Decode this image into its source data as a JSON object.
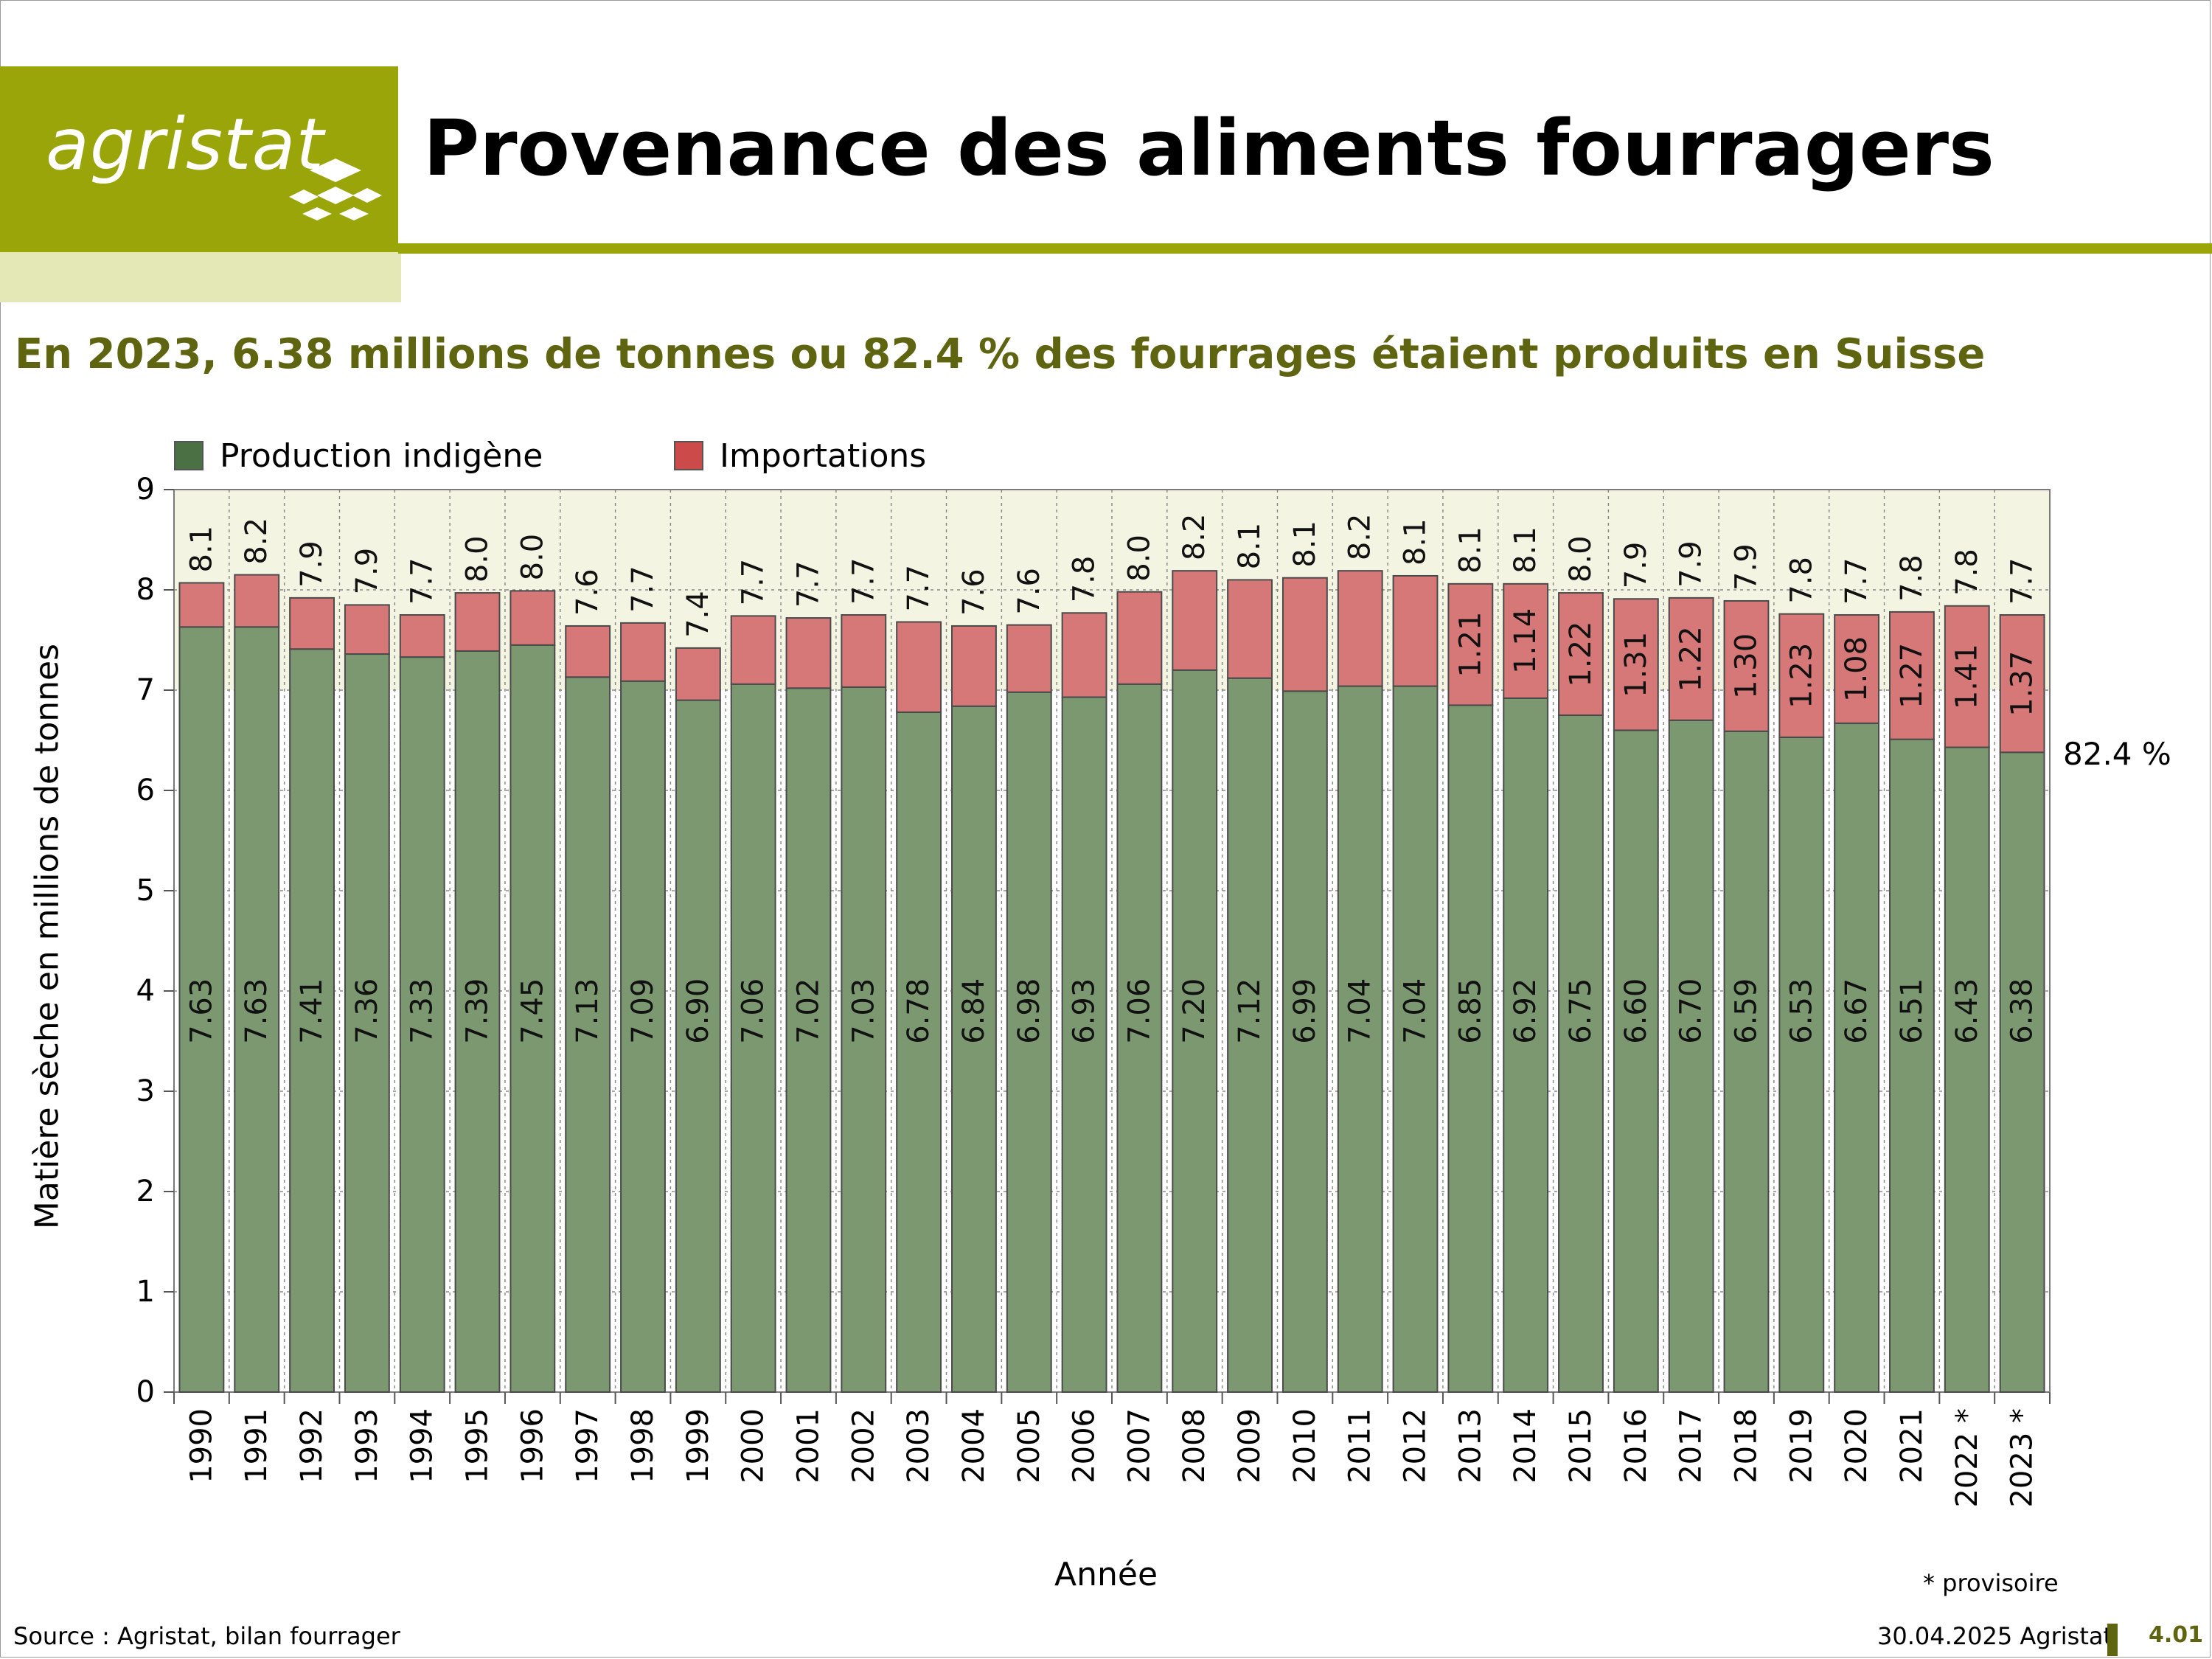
{
  "brand": {
    "logo_text": "agristat"
  },
  "header": {
    "title": "Provenance des aliments fourragers",
    "subtitle": "En 2023, 6.38 millions de tonnes ou 82.4 % des fourrages étaient produits en Suisse"
  },
  "colors": {
    "brand": "#9aa50a",
    "brand_light": "#e4e8b6",
    "subtitle": "#5f6410",
    "production": "#7b9871",
    "importations": "#d67878",
    "plot_bg_upper": "#f3f4e2"
  },
  "chart_data": {
    "type": "bar",
    "stacked": true,
    "xlabel": "Année",
    "ylabel": "Matière sèche en millions de tonnes",
    "ylim": [
      0,
      9
    ],
    "yticks": [
      "0",
      "1",
      "2",
      "3",
      "4",
      "5",
      "6",
      "7",
      "8",
      "9"
    ],
    "legend_position": "top-left",
    "grid": "dotted",
    "categories": [
      "1990",
      "1991",
      "1992",
      "1993",
      "1994",
      "1995",
      "1996",
      "1997",
      "1998",
      "1999",
      "2000",
      "2001",
      "2002",
      "2003",
      "2004",
      "2005",
      "2006",
      "2007",
      "2008",
      "2009",
      "2010",
      "2011",
      "2012",
      "2013",
      "2014",
      "2015",
      "2016",
      "2017",
      "2018",
      "2019",
      "2020",
      "2021",
      "2022 *",
      "2023 *"
    ],
    "series": [
      {
        "name": "Production indigène",
        "values": [
          7.63,
          7.63,
          7.41,
          7.36,
          7.33,
          7.39,
          7.45,
          7.13,
          7.09,
          6.9,
          7.06,
          7.02,
          7.03,
          6.78,
          6.84,
          6.98,
          6.93,
          7.06,
          7.2,
          7.12,
          6.99,
          7.04,
          7.04,
          6.85,
          6.92,
          6.75,
          6.6,
          6.7,
          6.59,
          6.53,
          6.67,
          6.51,
          6.43,
          6.38
        ],
        "labels": [
          "7.63",
          "7.63",
          "7.41",
          "7.36",
          "7.33",
          "7.39",
          "7.45",
          "7.13",
          "7.09",
          "6.90",
          "7.06",
          "7.02",
          "7.03",
          "6.78",
          "6.84",
          "6.98",
          "6.93",
          "7.06",
          "7.20",
          "7.12",
          "6.99",
          "7.04",
          "7.04",
          "6.85",
          "6.92",
          "6.75",
          "6.60",
          "6.70",
          "6.59",
          "6.53",
          "6.67",
          "6.51",
          "6.43",
          "6.38"
        ]
      },
      {
        "name": "Importations",
        "values": [
          0.44,
          0.52,
          0.51,
          0.49,
          0.42,
          0.58,
          0.54,
          0.51,
          0.58,
          0.52,
          0.68,
          0.7,
          0.72,
          0.9,
          0.8,
          0.67,
          0.84,
          0.92,
          0.99,
          0.98,
          1.13,
          1.15,
          1.1,
          1.21,
          1.14,
          1.22,
          1.31,
          1.22,
          1.3,
          1.23,
          1.08,
          1.27,
          1.41,
          1.37
        ],
        "labels": [
          "",
          "",
          "",
          "",
          "",
          "",
          "",
          "",
          "",
          "",
          "",
          "",
          "",
          "",
          "",
          "",
          "",
          "",
          "",
          "",
          "",
          "",
          "",
          "1.21",
          "1.14",
          "1.22",
          "1.31",
          "1.22",
          "1.30",
          "1.23",
          "1.08",
          "1.27",
          "1.41",
          "1.37"
        ]
      }
    ],
    "totals": [
      "8.1",
      "8.2",
      "7.9",
      "7.9",
      "7.7",
      "8.0",
      "8.0",
      "7.6",
      "7.7",
      "7.4",
      "7.7",
      "7.7",
      "7.7",
      "7.7",
      "7.6",
      "7.6",
      "7.8",
      "8.0",
      "8.2",
      "8.1",
      "8.1",
      "8.2",
      "8.1",
      "8.1",
      "8.1",
      "8.0",
      "7.9",
      "7.9",
      "7.9",
      "7.8",
      "7.7",
      "7.8",
      "7.8",
      "7.7"
    ],
    "annotation_last": "82.4 %",
    "note": "* provisoire"
  },
  "footer": {
    "source": "Source : Agristat, bilan fourrager",
    "date": "30.04.2025 Agristat",
    "page": "4.01"
  }
}
